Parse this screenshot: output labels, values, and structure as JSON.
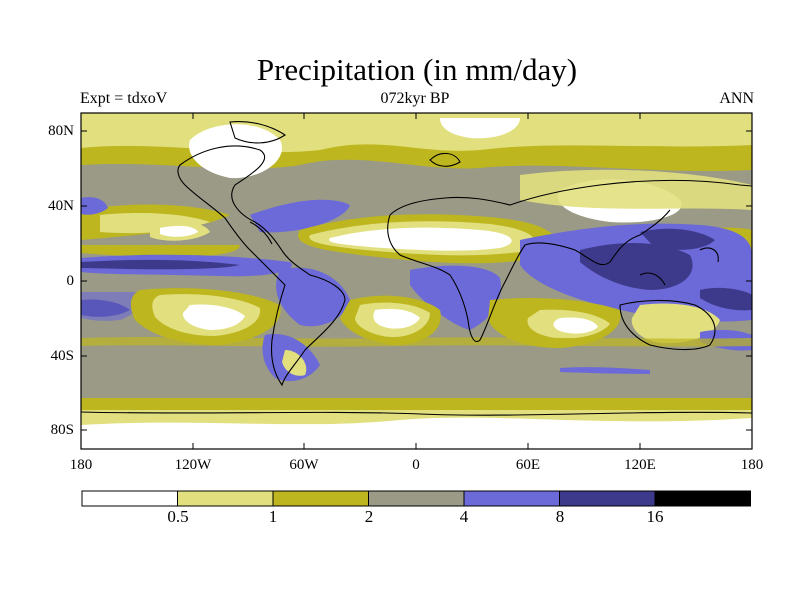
{
  "title": "Precipitation (in mm/day)",
  "experiment_label": "Expt = tdxoV",
  "period_label": "072kyr BP",
  "season_label": "ANN",
  "map": {
    "lat_ticks": [
      "80N",
      "40N",
      "0",
      "40S",
      "80S"
    ],
    "lon_ticks": [
      "180",
      "120W",
      "60W",
      "0",
      "60E",
      "120E",
      "180"
    ]
  },
  "colorbar": {
    "labels": [
      "0.5",
      "1",
      "2",
      "4",
      "8",
      "16"
    ],
    "colors": [
      "#ffffff",
      "#e2e07e",
      "#bdb61e",
      "#9a9a86",
      "#6c6ad8",
      "#3d3a8c",
      "#000000"
    ]
  },
  "colors": {
    "coastline": "#000000",
    "background_field": "#9a9a86"
  }
}
